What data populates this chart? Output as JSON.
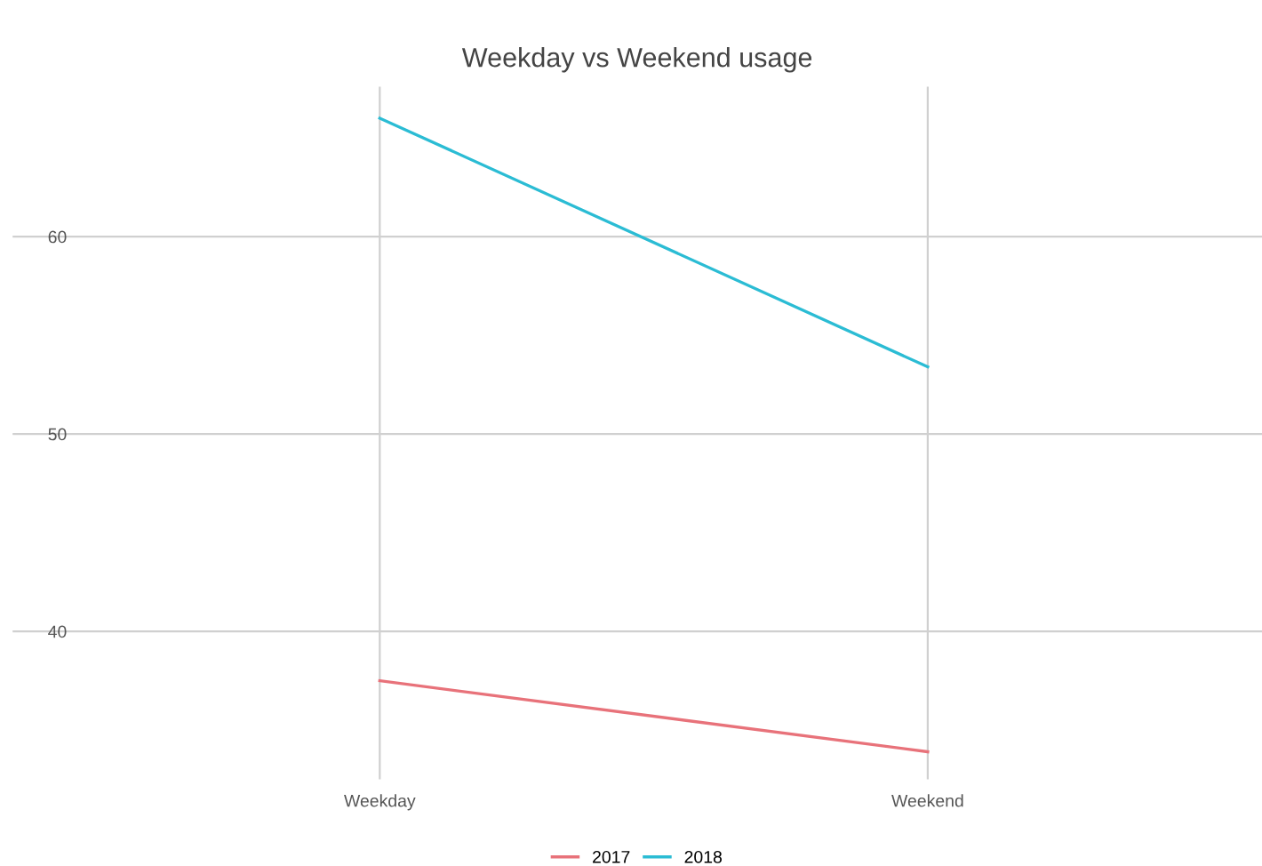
{
  "chart_data": {
    "type": "line",
    "title": "Weekday vs Weekend usage",
    "categories": [
      "Weekday",
      "Weekend"
    ],
    "series": [
      {
        "name": "2017",
        "color": "#e8727a",
        "values": [
          37.5,
          33.9
        ]
      },
      {
        "name": "2018",
        "color": "#2bbcd4",
        "values": [
          66.0,
          53.4
        ]
      }
    ],
    "ylim": [
      32.5,
      67.6
    ],
    "yticks": [
      40,
      50,
      60
    ],
    "grid": true,
    "legend": "bottom",
    "marker": "none",
    "line_style": "solid"
  }
}
